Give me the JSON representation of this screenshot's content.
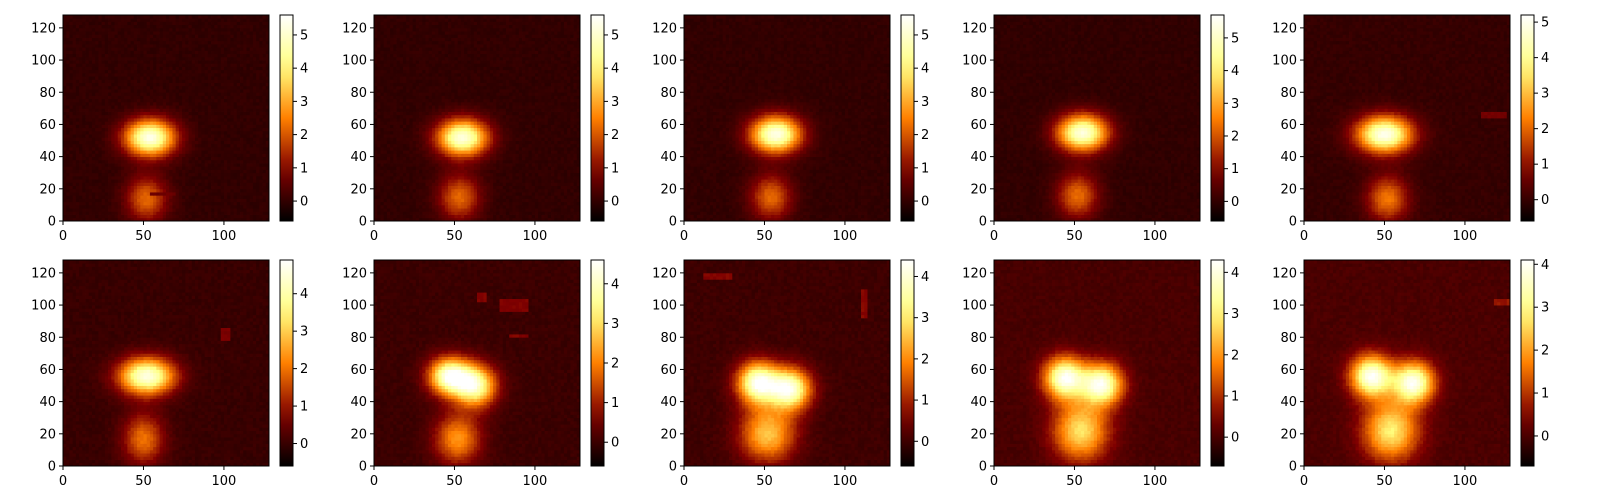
{
  "figure": {
    "rows": 2,
    "cols": 5,
    "colormap": "afmhot",
    "background": "#ffffff"
  },
  "chart_data": [
    {
      "type": "heatmap",
      "xlim": [
        0,
        128
      ],
      "ylim": [
        0,
        128
      ],
      "xticks": [
        0,
        50,
        100
      ],
      "yticks": [
        0,
        20,
        40,
        60,
        80,
        100,
        120
      ],
      "colorbar": {
        "vmin": -0.6,
        "vmax": 5.6,
        "ticks": [
          0,
          1,
          2,
          3,
          4,
          5
        ]
      },
      "blobs": [
        {
          "cx": 54,
          "cy": 52,
          "sx": 11,
          "sy": 8,
          "peak": 5.3
        },
        {
          "cx": 52,
          "cy": 14,
          "sx": 9,
          "sy": 10,
          "peak": 2.2
        }
      ],
      "masked_regions": [
        {
          "x0": 55,
          "x1": 70,
          "y0": 16,
          "y1": 18
        }
      ]
    },
    {
      "type": "heatmap",
      "xlim": [
        0,
        128
      ],
      "ylim": [
        0,
        128
      ],
      "xticks": [
        0,
        50,
        100
      ],
      "yticks": [
        0,
        20,
        40,
        60,
        80,
        100,
        120
      ],
      "colorbar": {
        "vmin": -0.6,
        "vmax": 5.6,
        "ticks": [
          0,
          1,
          2,
          3,
          4,
          5
        ]
      },
      "blobs": [
        {
          "cx": 55,
          "cy": 52,
          "sx": 11,
          "sy": 8,
          "peak": 5.2
        },
        {
          "cx": 53,
          "cy": 15,
          "sx": 9,
          "sy": 10,
          "peak": 2.2
        }
      ],
      "masked_regions": []
    },
    {
      "type": "heatmap",
      "xlim": [
        0,
        128
      ],
      "ylim": [
        0,
        128
      ],
      "xticks": [
        0,
        50,
        100
      ],
      "yticks": [
        0,
        20,
        40,
        60,
        80,
        100,
        120
      ],
      "colorbar": {
        "vmin": -0.6,
        "vmax": 5.6,
        "ticks": [
          0,
          1,
          2,
          3,
          4,
          5
        ]
      },
      "blobs": [
        {
          "cx": 57,
          "cy": 54,
          "sx": 11,
          "sy": 8,
          "peak": 5.3
        },
        {
          "cx": 54,
          "cy": 15,
          "sx": 9,
          "sy": 10,
          "peak": 2.2
        }
      ],
      "masked_regions": []
    },
    {
      "type": "heatmap",
      "xlim": [
        0,
        128
      ],
      "ylim": [
        0,
        128
      ],
      "xticks": [
        0,
        50,
        100
      ],
      "yticks": [
        0,
        20,
        40,
        60,
        80,
        100,
        120
      ],
      "colorbar": {
        "vmin": -0.6,
        "vmax": 5.7,
        "ticks": [
          0,
          1,
          2,
          3,
          4,
          5
        ]
      },
      "blobs": [
        {
          "cx": 55,
          "cy": 55,
          "sx": 11,
          "sy": 8,
          "peak": 5.3
        },
        {
          "cx": 52,
          "cy": 16,
          "sx": 9,
          "sy": 10,
          "peak": 2.3
        }
      ],
      "masked_regions": []
    },
    {
      "type": "heatmap",
      "xlim": [
        0,
        128
      ],
      "ylim": [
        0,
        128
      ],
      "xticks": [
        0,
        50,
        100
      ],
      "yticks": [
        0,
        20,
        40,
        60,
        80,
        100,
        120
      ],
      "colorbar": {
        "vmin": -0.6,
        "vmax": 5.2,
        "ticks": [
          0,
          1,
          2,
          3,
          4,
          5
        ]
      },
      "blobs": [
        {
          "cx": 50,
          "cy": 54,
          "sx": 12,
          "sy": 8,
          "peak": 5.0
        },
        {
          "cx": 52,
          "cy": 14,
          "sx": 9,
          "sy": 10,
          "peak": 2.2
        }
      ],
      "masked_regions": [
        {
          "x0": 110,
          "x1": 125,
          "y0": 64,
          "y1": 68
        }
      ]
    },
    {
      "type": "heatmap",
      "xlim": [
        0,
        128
      ],
      "ylim": [
        0,
        128
      ],
      "xticks": [
        0,
        50,
        100
      ],
      "yticks": [
        0,
        20,
        40,
        60,
        80,
        100,
        120
      ],
      "colorbar": {
        "vmin": -0.6,
        "vmax": 4.9,
        "ticks": [
          0,
          1,
          2,
          3,
          4
        ]
      },
      "blobs": [
        {
          "cx": 52,
          "cy": 56,
          "sx": 12,
          "sy": 8,
          "peak": 4.6
        },
        {
          "cx": 50,
          "cy": 17,
          "sx": 9,
          "sy": 11,
          "peak": 2.0
        }
      ],
      "masked_regions": [
        {
          "x0": 98,
          "x1": 104,
          "y0": 78,
          "y1": 86
        }
      ]
    },
    {
      "type": "heatmap",
      "xlim": [
        0,
        128
      ],
      "ylim": [
        0,
        128
      ],
      "xticks": [
        0,
        50,
        100
      ],
      "yticks": [
        0,
        20,
        40,
        60,
        80,
        100,
        120
      ],
      "colorbar": {
        "vmin": -0.6,
        "vmax": 4.6,
        "ticks": [
          0,
          1,
          2,
          3,
          4
        ]
      },
      "blobs": [
        {
          "cx": 47,
          "cy": 56,
          "sx": 9,
          "sy": 8,
          "peak": 4.3
        },
        {
          "cx": 63,
          "cy": 50,
          "sx": 9,
          "sy": 9,
          "peak": 3.8
        },
        {
          "cx": 52,
          "cy": 17,
          "sx": 10,
          "sy": 11,
          "peak": 2.2
        }
      ],
      "masked_regions": [
        {
          "x0": 64,
          "x1": 70,
          "y0": 103,
          "y1": 107
        },
        {
          "x0": 79,
          "x1": 95,
          "y0": 97,
          "y1": 103
        },
        {
          "x0": 85,
          "x1": 95,
          "y0": 80,
          "y1": 82
        }
      ]
    },
    {
      "type": "heatmap",
      "xlim": [
        0,
        128
      ],
      "ylim": [
        0,
        128
      ],
      "xticks": [
        0,
        50,
        100
      ],
      "yticks": [
        0,
        20,
        40,
        60,
        80,
        100,
        120
      ],
      "colorbar": {
        "vmin": -0.6,
        "vmax": 4.4,
        "ticks": [
          0,
          1,
          2,
          3,
          4
        ]
      },
      "blobs": [
        {
          "cx": 46,
          "cy": 52,
          "sx": 9,
          "sy": 9,
          "peak": 4.2
        },
        {
          "cx": 66,
          "cy": 48,
          "sx": 9,
          "sy": 9,
          "peak": 4.0
        },
        {
          "cx": 52,
          "cy": 20,
          "sx": 12,
          "sy": 12,
          "peak": 2.6
        }
      ],
      "masked_regions": [
        {
          "x0": 12,
          "x1": 29,
          "y0": 116,
          "y1": 119
        },
        {
          "x0": 110,
          "x1": 113,
          "y0": 92,
          "y1": 110
        }
      ]
    },
    {
      "type": "heatmap",
      "xlim": [
        0,
        128
      ],
      "ylim": [
        0,
        128
      ],
      "xticks": [
        0,
        50,
        100
      ],
      "yticks": [
        0,
        20,
        40,
        60,
        80,
        100,
        120
      ],
      "colorbar": {
        "vmin": -0.7,
        "vmax": 4.3,
        "ticks": [
          0,
          1,
          2,
          3,
          4
        ]
      },
      "blobs": [
        {
          "cx": 44,
          "cy": 55,
          "sx": 9,
          "sy": 9,
          "peak": 4.1
        },
        {
          "cx": 67,
          "cy": 51,
          "sx": 9,
          "sy": 9,
          "peak": 4.0
        },
        {
          "cx": 54,
          "cy": 22,
          "sx": 12,
          "sy": 13,
          "peak": 2.8
        }
      ],
      "masked_regions": []
    },
    {
      "type": "heatmap",
      "xlim": [
        0,
        128
      ],
      "ylim": [
        0,
        128
      ],
      "xticks": [
        0,
        50,
        100
      ],
      "yticks": [
        0,
        20,
        40,
        60,
        80,
        100,
        120
      ],
      "colorbar": {
        "vmin": -0.7,
        "vmax": 4.1,
        "ticks": [
          0,
          1,
          2,
          3,
          4
        ]
      },
      "blobs": [
        {
          "cx": 42,
          "cy": 56,
          "sx": 9,
          "sy": 9,
          "peak": 4.0
        },
        {
          "cx": 68,
          "cy": 52,
          "sx": 9,
          "sy": 9,
          "peak": 3.9
        },
        {
          "cx": 54,
          "cy": 22,
          "sx": 12,
          "sy": 13,
          "peak": 2.8
        }
      ],
      "masked_regions": [
        {
          "x0": 119,
          "x1": 127,
          "y0": 100,
          "y1": 104
        }
      ]
    }
  ]
}
